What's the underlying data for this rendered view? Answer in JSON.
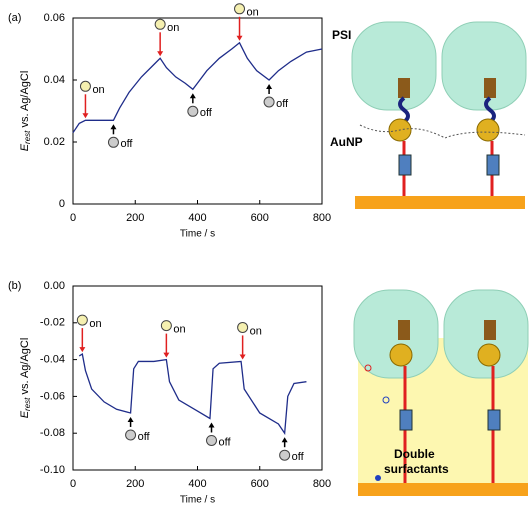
{
  "chart_data": [
    {
      "type": "line",
      "panel": "(a)",
      "xlabel": "Time / s",
      "ylabel_main": "E",
      "ylabel_sub": "rest",
      "ylabel_rest": " vs. Ag/AgCl",
      "x": [
        0,
        20,
        40,
        80,
        130,
        150,
        180,
        220,
        260,
        280,
        300,
        330,
        360,
        385,
        400,
        430,
        470,
        510,
        535,
        560,
        590,
        630,
        660,
        700,
        750,
        800
      ],
      "series": [
        {
          "color": "#1f2d8a",
          "values": [
            0.023,
            0.026,
            0.027,
            0.027,
            0.027,
            0.031,
            0.036,
            0.041,
            0.045,
            0.047,
            0.044,
            0.041,
            0.039,
            0.037,
            0.039,
            0.043,
            0.047,
            0.05,
            0.052,
            0.047,
            0.043,
            0.04,
            0.043,
            0.046,
            0.049,
            0.05
          ]
        }
      ],
      "xlim": [
        0,
        800
      ],
      "xticks": [
        0,
        200,
        400,
        600,
        800
      ],
      "ylim": [
        0,
        0.06
      ],
      "yticks": [
        0,
        0.02,
        0.04,
        0.06
      ],
      "annotations": [
        {
          "text": "on",
          "x": 40,
          "y": 0.027
        },
        {
          "text": "off",
          "x": 130,
          "y": 0.027
        },
        {
          "text": "on",
          "x": 280,
          "y": 0.047
        },
        {
          "text": "off",
          "x": 385,
          "y": 0.037
        },
        {
          "text": "on",
          "x": 535,
          "y": 0.052
        },
        {
          "text": "off",
          "x": 630,
          "y": 0.04
        }
      ]
    },
    {
      "type": "line",
      "panel": "(b)",
      "xlabel": "Time / s",
      "ylabel_main": "E",
      "ylabel_sub": "rest",
      "ylabel_rest": " vs. Ag/AgCl",
      "x": [
        20,
        30,
        40,
        60,
        100,
        140,
        185,
        195,
        210,
        260,
        300,
        310,
        340,
        400,
        440,
        450,
        470,
        540,
        550,
        600,
        660,
        680,
        690,
        710,
        750
      ],
      "series": [
        {
          "color": "#1f2d8a",
          "values": [
            -0.038,
            -0.037,
            -0.046,
            -0.056,
            -0.063,
            -0.067,
            -0.069,
            -0.045,
            -0.041,
            -0.041,
            -0.04,
            -0.052,
            -0.062,
            -0.068,
            -0.072,
            -0.045,
            -0.042,
            -0.041,
            -0.056,
            -0.069,
            -0.075,
            -0.08,
            -0.06,
            -0.053,
            -0.052
          ]
        }
      ],
      "xlim": [
        0,
        800
      ],
      "xticks": [
        0,
        200,
        400,
        600,
        800
      ],
      "ylim": [
        -0.1,
        0
      ],
      "yticks": [
        {
          "value": -0.1,
          "label": "-0.10"
        },
        -0.08,
        -0.06,
        -0.04,
        -0.02,
        {
          "value": 0,
          "label": "0.00"
        }
      ],
      "annotations": [
        {
          "text": "on",
          "x": 30,
          "y": -0.037
        },
        {
          "text": "off",
          "x": 185,
          "y": -0.069
        },
        {
          "text": "on",
          "x": 300,
          "y": -0.04
        },
        {
          "text": "off",
          "x": 445,
          "y": -0.072
        },
        {
          "text": "on",
          "x": 545,
          "y": -0.041
        },
        {
          "text": "off",
          "x": 680,
          "y": -0.08
        }
      ]
    }
  ],
  "diagram": {
    "labels": [
      "PSI",
      "AuNP",
      "Double",
      "surfactants"
    ]
  }
}
